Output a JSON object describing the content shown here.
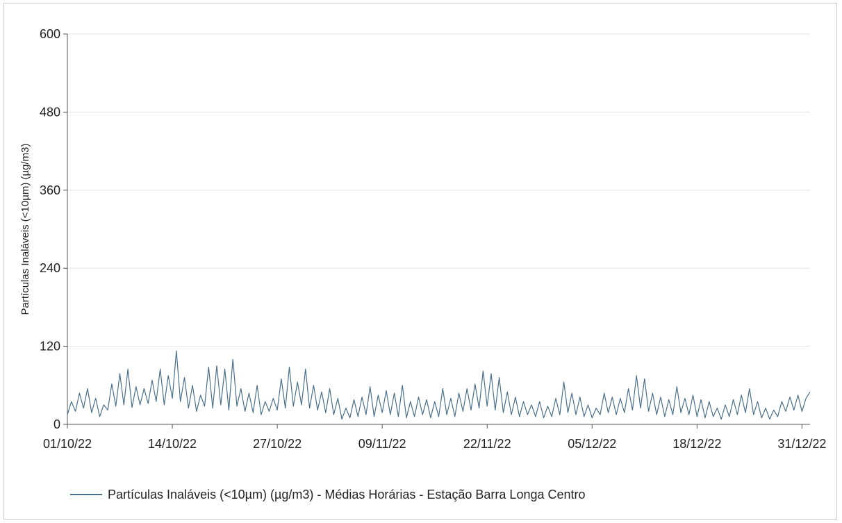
{
  "chart_data": {
    "type": "line",
    "title": "",
    "xlabel": "",
    "ylabel": "Partículas Inaláveis (<10µm) (µg/m3)",
    "ylim": [
      0,
      600
    ],
    "yticks": [
      0,
      120,
      240,
      360,
      480,
      600
    ],
    "x_range": [
      "2022-10-01",
      "2023-01-01"
    ],
    "x_ticks": [
      {
        "date": "2022-10-01",
        "label": "01/10/22"
      },
      {
        "date": "2022-10-14",
        "label": "14/10/22"
      },
      {
        "date": "2022-10-27",
        "label": "27/10/22"
      },
      {
        "date": "2022-11-09",
        "label": "09/11/22"
      },
      {
        "date": "2022-11-22",
        "label": "22/11/22"
      },
      {
        "date": "2022-12-05",
        "label": "05/12/22"
      },
      {
        "date": "2022-12-18",
        "label": "18/12/22"
      },
      {
        "date": "2022-12-31",
        "label": "31/12/22"
      }
    ],
    "grid": "horizontal",
    "legend_position": "bottom-left",
    "series": [
      {
        "name": "Partículas Inaláveis (<10µm) (µg/m3) - Médias Horárias - Estação Barra Longa Centro",
        "color": "#4a6f8a",
        "points": [
          [
            "2022-10-01",
            15
          ],
          [
            "2022-10-01 12:00",
            35
          ],
          [
            "2022-10-02",
            20
          ],
          [
            "2022-10-02 12:00",
            48
          ],
          [
            "2022-10-03",
            25
          ],
          [
            "2022-10-03 12:00",
            55
          ],
          [
            "2022-10-04",
            18
          ],
          [
            "2022-10-04 12:00",
            40
          ],
          [
            "2022-10-05",
            12
          ],
          [
            "2022-10-05 12:00",
            30
          ],
          [
            "2022-10-06",
            22
          ],
          [
            "2022-10-06 12:00",
            62
          ],
          [
            "2022-10-07",
            28
          ],
          [
            "2022-10-07 12:00",
            78
          ],
          [
            "2022-10-08",
            30
          ],
          [
            "2022-10-08 12:00",
            85
          ],
          [
            "2022-10-09",
            26
          ],
          [
            "2022-10-09 12:00",
            58
          ],
          [
            "2022-10-10",
            30
          ],
          [
            "2022-10-10 12:00",
            55
          ],
          [
            "2022-10-11",
            32
          ],
          [
            "2022-10-11 12:00",
            68
          ],
          [
            "2022-10-12",
            35
          ],
          [
            "2022-10-12 12:00",
            85
          ],
          [
            "2022-10-13",
            30
          ],
          [
            "2022-10-13 12:00",
            75
          ],
          [
            "2022-10-14",
            40
          ],
          [
            "2022-10-14 12:00",
            113
          ],
          [
            "2022-10-15",
            35
          ],
          [
            "2022-10-15 12:00",
            72
          ],
          [
            "2022-10-16",
            25
          ],
          [
            "2022-10-16 12:00",
            60
          ],
          [
            "2022-10-17",
            20
          ],
          [
            "2022-10-17 12:00",
            45
          ],
          [
            "2022-10-18",
            28
          ],
          [
            "2022-10-18 12:00",
            88
          ],
          [
            "2022-10-19",
            25
          ],
          [
            "2022-10-19 12:00",
            90
          ],
          [
            "2022-10-20",
            30
          ],
          [
            "2022-10-20 12:00",
            85
          ],
          [
            "2022-10-21",
            22
          ],
          [
            "2022-10-21 12:00",
            100
          ],
          [
            "2022-10-22",
            28
          ],
          [
            "2022-10-22 12:00",
            55
          ],
          [
            "2022-10-23",
            20
          ],
          [
            "2022-10-23 12:00",
            48
          ],
          [
            "2022-10-24",
            18
          ],
          [
            "2022-10-24 12:00",
            60
          ],
          [
            "2022-10-25",
            15
          ],
          [
            "2022-10-25 12:00",
            35
          ],
          [
            "2022-10-26",
            20
          ],
          [
            "2022-10-26 12:00",
            40
          ],
          [
            "2022-10-27",
            22
          ],
          [
            "2022-10-27 12:00",
            70
          ],
          [
            "2022-10-28",
            25
          ],
          [
            "2022-10-28 12:00",
            88
          ],
          [
            "2022-10-29",
            28
          ],
          [
            "2022-10-29 12:00",
            65
          ],
          [
            "2022-10-30",
            30
          ],
          [
            "2022-10-30 12:00",
            85
          ],
          [
            "2022-10-31",
            25
          ],
          [
            "2022-10-31 12:00",
            60
          ],
          [
            "2022-11-01",
            22
          ],
          [
            "2022-11-01 12:00",
            50
          ],
          [
            "2022-11-02",
            18
          ],
          [
            "2022-11-02 12:00",
            55
          ],
          [
            "2022-11-03",
            15
          ],
          [
            "2022-11-03 12:00",
            40
          ],
          [
            "2022-11-04",
            8
          ],
          [
            "2022-11-04 12:00",
            25
          ],
          [
            "2022-11-05",
            10
          ],
          [
            "2022-11-05 12:00",
            38
          ],
          [
            "2022-11-06",
            12
          ],
          [
            "2022-11-06 12:00",
            42
          ],
          [
            "2022-11-07",
            15
          ],
          [
            "2022-11-07 12:00",
            58
          ],
          [
            "2022-11-08",
            12
          ],
          [
            "2022-11-08 12:00",
            45
          ],
          [
            "2022-11-09",
            18
          ],
          [
            "2022-11-09 12:00",
            52
          ],
          [
            "2022-11-10",
            15
          ],
          [
            "2022-11-10 12:00",
            48
          ],
          [
            "2022-11-11",
            12
          ],
          [
            "2022-11-11 12:00",
            60
          ],
          [
            "2022-11-12",
            10
          ],
          [
            "2022-11-12 12:00",
            35
          ],
          [
            "2022-11-13",
            12
          ],
          [
            "2022-11-13 12:00",
            42
          ],
          [
            "2022-11-14",
            15
          ],
          [
            "2022-11-14 12:00",
            38
          ],
          [
            "2022-11-15",
            10
          ],
          [
            "2022-11-15 12:00",
            35
          ],
          [
            "2022-11-16",
            12
          ],
          [
            "2022-11-16 12:00",
            55
          ],
          [
            "2022-11-17",
            15
          ],
          [
            "2022-11-17 12:00",
            40
          ],
          [
            "2022-11-18",
            12
          ],
          [
            "2022-11-18 12:00",
            48
          ],
          [
            "2022-11-19",
            20
          ],
          [
            "2022-11-19 12:00",
            55
          ],
          [
            "2022-11-20",
            22
          ],
          [
            "2022-11-20 12:00",
            62
          ],
          [
            "2022-11-21",
            25
          ],
          [
            "2022-11-21 12:00",
            82
          ],
          [
            "2022-11-22",
            28
          ],
          [
            "2022-11-22 12:00",
            78
          ],
          [
            "2022-11-23",
            22
          ],
          [
            "2022-11-23 12:00",
            72
          ],
          [
            "2022-11-24",
            18
          ],
          [
            "2022-11-24 12:00",
            50
          ],
          [
            "2022-11-25",
            15
          ],
          [
            "2022-11-25 12:00",
            42
          ],
          [
            "2022-11-26",
            12
          ],
          [
            "2022-11-26 12:00",
            35
          ],
          [
            "2022-11-27",
            15
          ],
          [
            "2022-11-27 12:00",
            30
          ],
          [
            "2022-11-28",
            12
          ],
          [
            "2022-11-28 12:00",
            35
          ],
          [
            "2022-11-29",
            10
          ],
          [
            "2022-11-29 12:00",
            28
          ],
          [
            "2022-11-30",
            12
          ],
          [
            "2022-11-30 12:00",
            40
          ],
          [
            "2022-12-01",
            15
          ],
          [
            "2022-12-01 12:00",
            65
          ],
          [
            "2022-12-02",
            18
          ],
          [
            "2022-12-02 12:00",
            48
          ],
          [
            "2022-12-03",
            15
          ],
          [
            "2022-12-03 12:00",
            42
          ],
          [
            "2022-12-04",
            12
          ],
          [
            "2022-12-04 12:00",
            30
          ],
          [
            "2022-12-05",
            10
          ],
          [
            "2022-12-05 12:00",
            25
          ],
          [
            "2022-12-06",
            15
          ],
          [
            "2022-12-06 12:00",
            48
          ],
          [
            "2022-12-07",
            18
          ],
          [
            "2022-12-07 12:00",
            42
          ],
          [
            "2022-12-08",
            15
          ],
          [
            "2022-12-08 12:00",
            40
          ],
          [
            "2022-12-09",
            18
          ],
          [
            "2022-12-09 12:00",
            55
          ],
          [
            "2022-12-10",
            22
          ],
          [
            "2022-12-10 12:00",
            75
          ],
          [
            "2022-12-11",
            25
          ],
          [
            "2022-12-11 12:00",
            70
          ],
          [
            "2022-12-12",
            20
          ],
          [
            "2022-12-12 12:00",
            48
          ],
          [
            "2022-12-13",
            15
          ],
          [
            "2022-12-13 12:00",
            42
          ],
          [
            "2022-12-14",
            12
          ],
          [
            "2022-12-14 12:00",
            38
          ],
          [
            "2022-12-15",
            15
          ],
          [
            "2022-12-15 12:00",
            58
          ],
          [
            "2022-12-16",
            18
          ],
          [
            "2022-12-16 12:00",
            40
          ],
          [
            "2022-12-17",
            15
          ],
          [
            "2022-12-17 12:00",
            45
          ],
          [
            "2022-12-18",
            12
          ],
          [
            "2022-12-18 12:00",
            38
          ],
          [
            "2022-12-19",
            10
          ],
          [
            "2022-12-19 12:00",
            35
          ],
          [
            "2022-12-20",
            12
          ],
          [
            "2022-12-20 12:00",
            25
          ],
          [
            "2022-12-21",
            8
          ],
          [
            "2022-12-21 12:00",
            30
          ],
          [
            "2022-12-22",
            12
          ],
          [
            "2022-12-22 12:00",
            38
          ],
          [
            "2022-12-23",
            15
          ],
          [
            "2022-12-23 12:00",
            45
          ],
          [
            "2022-12-24",
            18
          ],
          [
            "2022-12-24 12:00",
            55
          ],
          [
            "2022-12-25",
            15
          ],
          [
            "2022-12-25 12:00",
            35
          ],
          [
            "2022-12-26",
            10
          ],
          [
            "2022-12-26 12:00",
            25
          ],
          [
            "2022-12-27",
            8
          ],
          [
            "2022-12-27 12:00",
            22
          ],
          [
            "2022-12-28",
            12
          ],
          [
            "2022-12-28 12:00",
            35
          ],
          [
            "2022-12-29",
            20
          ],
          [
            "2022-12-29 12:00",
            42
          ],
          [
            "2022-12-30",
            22
          ],
          [
            "2022-12-30 12:00",
            45
          ],
          [
            "2022-12-31",
            20
          ],
          [
            "2022-12-31 12:00",
            40
          ],
          [
            "2023-01-01",
            50
          ]
        ]
      }
    ]
  }
}
